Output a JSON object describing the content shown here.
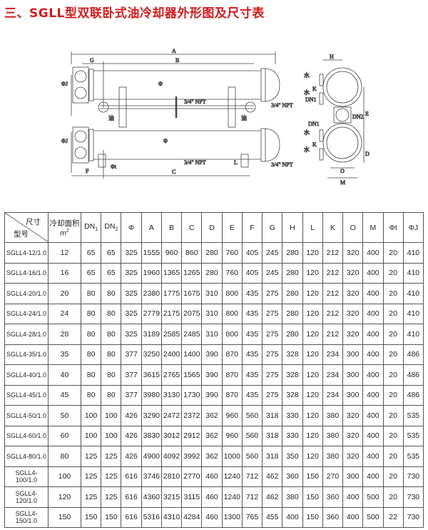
{
  "title": "三、SGLL型双联卧式油冷却器外形图及尺寸表",
  "title_color": "#d21a1a",
  "drawing": {
    "labels": {
      "A": "A",
      "B": "B",
      "C": "C",
      "G": "G",
      "F": "F",
      "L": "L",
      "phi_t": "Φt",
      "phi_j": "ΦJ",
      "phi": "Φ",
      "npt": "3/4\" NPT",
      "oil": "油",
      "water": "水",
      "H": "H",
      "K": "K",
      "E": "E",
      "D": "D",
      "O": "O",
      "M": "M",
      "DN1": "DN1",
      "DN2": "DN2"
    }
  },
  "table": {
    "header": {
      "corner_top": "尺寸",
      "corner_bottom": "型号",
      "area": "冷却面积",
      "area_unit": "m",
      "area_unit_sup": "2",
      "dn1": "DN",
      "dn1_sub": "1",
      "dn2": "DN",
      "dn2_sub": "2",
      "cols": [
        "Φ",
        "A",
        "B",
        "C",
        "D",
        "E",
        "F",
        "G",
        "H",
        "L",
        "K",
        "O",
        "M",
        "Φt",
        "ΦJ"
      ]
    },
    "rows": [
      [
        "SGLL4-12/1.0",
        "12",
        "65",
        "65",
        "325",
        "1555",
        "960",
        "860",
        "280",
        "760",
        "405",
        "245",
        "280",
        "120",
        "212",
        "320",
        "400",
        "20",
        "410"
      ],
      [
        "SGLL4-16/1.0",
        "16",
        "65",
        "65",
        "325",
        "1960",
        "1365",
        "1265",
        "280",
        "760",
        "405",
        "245",
        "280",
        "120",
        "212",
        "320",
        "400",
        "20",
        "410"
      ],
      [
        "SGLL4-20/1.0",
        "20",
        "80",
        "80",
        "325",
        "2380",
        "1775",
        "1675",
        "310",
        "800",
        "435",
        "275",
        "280",
        "120",
        "212",
        "320",
        "400",
        "20",
        "410"
      ],
      [
        "SGLL4-24/1.0",
        "24",
        "80",
        "80",
        "325",
        "2779",
        "2175",
        "2075",
        "310",
        "800",
        "435",
        "275",
        "280",
        "120",
        "212",
        "320",
        "400",
        "20",
        "410"
      ],
      [
        "SGLL4-28/1.0",
        "28",
        "80",
        "80",
        "325",
        "3189",
        "2585",
        "2485",
        "310",
        "800",
        "435",
        "275",
        "280",
        "120",
        "212",
        "320",
        "400",
        "20",
        "410"
      ],
      [
        "SGLL4-35/1.0",
        "35",
        "80",
        "80",
        "377",
        "3250",
        "2400",
        "1400",
        "390",
        "870",
        "435",
        "275",
        "328",
        "120",
        "234",
        "300",
        "400",
        "20",
        "486"
      ],
      [
        "SGLL4-40/1.0",
        "40",
        "80",
        "80",
        "377",
        "3615",
        "2765",
        "1565",
        "390",
        "870",
        "435",
        "275",
        "328",
        "120",
        "234",
        "300",
        "400",
        "20",
        "486"
      ],
      [
        "SGLL4-45/1.0",
        "45",
        "80",
        "80",
        "377",
        "3980",
        "3130",
        "1730",
        "390",
        "870",
        "435",
        "275",
        "328",
        "120",
        "234",
        "300",
        "400",
        "20",
        "486"
      ],
      [
        "SGLL4-50/1.0",
        "50",
        "100",
        "100",
        "426",
        "3290",
        "2472",
        "2372",
        "362",
        "960",
        "560",
        "318",
        "330",
        "120",
        "380",
        "320",
        "400",
        "20",
        "535"
      ],
      [
        "SGLL4-60/1.0",
        "60",
        "100",
        "100",
        "426",
        "3830",
        "3012",
        "2912",
        "362",
        "960",
        "560",
        "318",
        "330",
        "120",
        "380",
        "320",
        "400",
        "20",
        "535"
      ],
      [
        "SGLL4-80/1.0",
        "80",
        "125",
        "125",
        "426",
        "4900",
        "4092",
        "3992",
        "362",
        "1000",
        "560",
        "318",
        "350",
        "120",
        "380",
        "320",
        "400",
        "20",
        "535"
      ],
      [
        "SGLL4-100/1.0",
        "100",
        "125",
        "125",
        "616",
        "3746",
        "2810",
        "2770",
        "460",
        "1240",
        "712",
        "462",
        "360",
        "150",
        "270",
        "300",
        "400",
        "20",
        "730"
      ],
      [
        "SGLL4-120/1.0",
        "120",
        "125",
        "125",
        "616",
        "4360",
        "3215",
        "3115",
        "460",
        "1240",
        "712",
        "462",
        "380",
        "150",
        "360",
        "400",
        "500",
        "20",
        "730"
      ],
      [
        "SGLL4-150/1.0",
        "150",
        "150",
        "150",
        "616",
        "5316",
        "4310",
        "4284",
        "460",
        "1300",
        "765",
        "455",
        "400",
        "150",
        "360",
        "400",
        "500",
        "22",
        "730"
      ]
    ]
  }
}
